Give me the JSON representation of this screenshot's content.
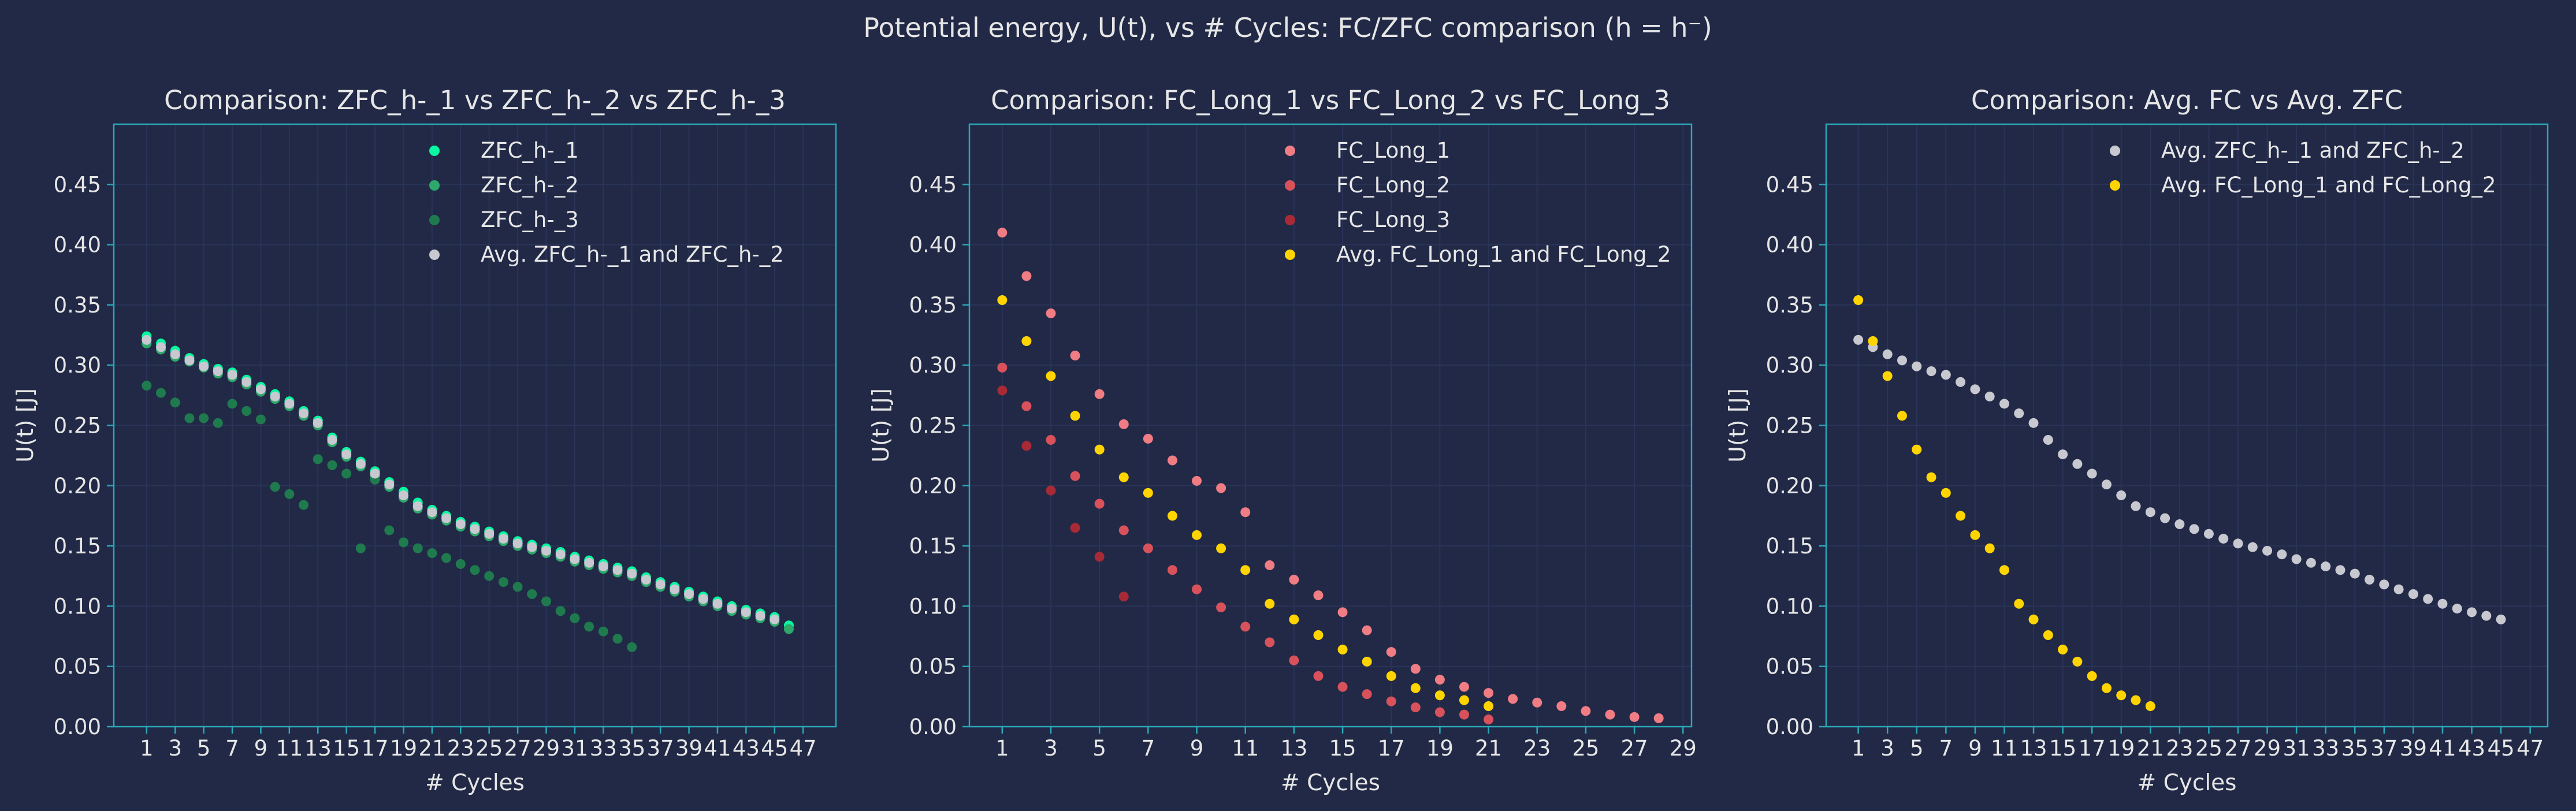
{
  "figure": {
    "suptitle": "Potential energy, U(t), vs # Cycles: FC/ZFC comparison (h = h⁻)",
    "background": "#212946",
    "grid_color": "#2A3459",
    "axes_color": "#2AA8B8",
    "text_color": "#E6E6E6"
  },
  "chart_data": [
    {
      "type": "scatter",
      "title": "Comparison: ZFC_h-_1 vs ZFC_h-_2 vs ZFC_h-_3",
      "xlabel": "# Cycles",
      "ylabel": "U(t) [J]",
      "xlim": [
        -1.3,
        49.3
      ],
      "ylim": [
        0,
        0.5
      ],
      "xticks": [
        1,
        3,
        5,
        7,
        9,
        11,
        13,
        15,
        17,
        19,
        21,
        23,
        25,
        27,
        29,
        31,
        33,
        35,
        37,
        39,
        41,
        43,
        45,
        47
      ],
      "yticks": [
        0.0,
        0.05,
        0.1,
        0.15,
        0.2,
        0.25,
        0.3,
        0.35,
        0.4,
        0.45
      ],
      "grid": true,
      "legend_position": "top-center",
      "series": [
        {
          "name": "ZFC_h-_1",
          "color": "#08F7A0",
          "x": [
            1,
            2,
            3,
            4,
            5,
            6,
            7,
            8,
            9,
            10,
            11,
            12,
            13,
            14,
            15,
            16,
            17,
            18,
            19,
            20,
            21,
            22,
            23,
            24,
            25,
            26,
            27,
            28,
            29,
            30,
            31,
            32,
            33,
            34,
            35,
            36,
            37,
            38,
            39,
            40,
            41,
            42,
            43,
            44,
            45,
            46
          ],
          "y": [
            0.324,
            0.318,
            0.312,
            0.306,
            0.301,
            0.297,
            0.294,
            0.288,
            0.282,
            0.276,
            0.27,
            0.262,
            0.254,
            0.24,
            0.228,
            0.22,
            0.212,
            0.203,
            0.195,
            0.186,
            0.18,
            0.175,
            0.17,
            0.166,
            0.162,
            0.158,
            0.154,
            0.151,
            0.148,
            0.145,
            0.141,
            0.138,
            0.135,
            0.132,
            0.129,
            0.124,
            0.12,
            0.116,
            0.112,
            0.108,
            0.104,
            0.1,
            0.097,
            0.094,
            0.091,
            0.084
          ]
        },
        {
          "name": "ZFC_h-_2",
          "color": "#2EA86C",
          "x": [
            1,
            2,
            3,
            4,
            5,
            6,
            7,
            8,
            9,
            10,
            11,
            12,
            13,
            14,
            15,
            16,
            17,
            18,
            19,
            20,
            21,
            22,
            23,
            24,
            25,
            26,
            27,
            28,
            29,
            30,
            31,
            32,
            33,
            34,
            35,
            36,
            37,
            38,
            39,
            40,
            41,
            42,
            43,
            44,
            45,
            46
          ],
          "y": [
            0.318,
            0.313,
            0.307,
            0.303,
            0.298,
            0.293,
            0.29,
            0.284,
            0.278,
            0.272,
            0.266,
            0.258,
            0.25,
            0.236,
            0.224,
            0.216,
            0.208,
            0.199,
            0.19,
            0.181,
            0.176,
            0.171,
            0.166,
            0.162,
            0.158,
            0.154,
            0.15,
            0.147,
            0.144,
            0.141,
            0.137,
            0.134,
            0.131,
            0.128,
            0.125,
            0.12,
            0.116,
            0.112,
            0.108,
            0.104,
            0.1,
            0.096,
            0.093,
            0.09,
            0.087,
            0.081
          ]
        },
        {
          "name": "ZFC_h-_3",
          "color": "#1F7A4E",
          "x": [
            1,
            2,
            3,
            4,
            5,
            6,
            7,
            8,
            9,
            10,
            11,
            12,
            13,
            14,
            15,
            16,
            17,
            18,
            19,
            20,
            21,
            22,
            23,
            24,
            25,
            26,
            27,
            28,
            29,
            30,
            31,
            32,
            33,
            34,
            35
          ],
          "y": [
            0.283,
            0.277,
            0.269,
            0.256,
            0.256,
            0.252,
            0.268,
            0.262,
            0.255,
            0.199,
            0.193,
            0.184,
            0.222,
            0.217,
            0.21,
            0.148,
            0.205,
            0.163,
            0.153,
            0.148,
            0.144,
            0.14,
            0.135,
            0.13,
            0.125,
            0.12,
            0.116,
            0.11,
            0.104,
            0.096,
            0.09,
            0.083,
            0.079,
            0.073,
            0.066
          ]
        },
        {
          "name": "Avg. ZFC_h-_1 and ZFC_h-_2",
          "color": "#C8C8D0",
          "x": [
            1,
            2,
            3,
            4,
            5,
            6,
            7,
            8,
            9,
            10,
            11,
            12,
            13,
            14,
            15,
            16,
            17,
            18,
            19,
            20,
            21,
            22,
            23,
            24,
            25,
            26,
            27,
            28,
            29,
            30,
            31,
            32,
            33,
            34,
            35,
            36,
            37,
            38,
            39,
            40,
            41,
            42,
            43,
            44,
            45
          ],
          "y": [
            0.321,
            0.315,
            0.309,
            0.304,
            0.299,
            0.295,
            0.292,
            0.286,
            0.28,
            0.274,
            0.268,
            0.26,
            0.252,
            0.238,
            0.226,
            0.218,
            0.21,
            0.201,
            0.192,
            0.183,
            0.178,
            0.173,
            0.168,
            0.164,
            0.16,
            0.156,
            0.152,
            0.149,
            0.146,
            0.143,
            0.139,
            0.136,
            0.133,
            0.13,
            0.127,
            0.122,
            0.118,
            0.114,
            0.11,
            0.106,
            0.102,
            0.098,
            0.095,
            0.092,
            0.089
          ]
        }
      ]
    },
    {
      "type": "scatter",
      "title": "Comparison: FC_Long_1 vs FC_Long_2 vs FC_Long_3",
      "xlabel": "# Cycles",
      "ylabel": "U(t) [J]",
      "xlim": [
        -0.35,
        29.35
      ],
      "ylim": [
        0,
        0.5
      ],
      "xticks": [
        1,
        3,
        5,
        7,
        9,
        11,
        13,
        15,
        17,
        19,
        21,
        23,
        25,
        27,
        29
      ],
      "yticks": [
        0.0,
        0.05,
        0.1,
        0.15,
        0.2,
        0.25,
        0.3,
        0.35,
        0.4,
        0.45
      ],
      "grid": true,
      "legend_position": "top-center",
      "series": [
        {
          "name": "FC_Long_1",
          "color": "#F07C84",
          "x": [
            1,
            2,
            3,
            4,
            5,
            6,
            7,
            8,
            9,
            10,
            11,
            12,
            13,
            14,
            15,
            16,
            17,
            18,
            19,
            20,
            21,
            22,
            23,
            24,
            25,
            26,
            27,
            28
          ],
          "y": [
            0.41,
            0.374,
            0.343,
            0.308,
            0.276,
            0.251,
            0.239,
            0.221,
            0.204,
            0.198,
            0.178,
            0.134,
            0.122,
            0.109,
            0.095,
            0.08,
            0.062,
            0.048,
            0.039,
            0.033,
            0.028,
            0.023,
            0.02,
            0.017,
            0.013,
            0.01,
            0.008,
            0.007
          ]
        },
        {
          "name": "FC_Long_2",
          "color": "#D9525B",
          "x": [
            1,
            2,
            3,
            4,
            5,
            6,
            7,
            8,
            9,
            10,
            11,
            12,
            13,
            14,
            15,
            16,
            17,
            18,
            19,
            20,
            21
          ],
          "y": [
            0.298,
            0.266,
            0.238,
            0.208,
            0.185,
            0.163,
            0.148,
            0.13,
            0.114,
            0.099,
            0.083,
            0.07,
            0.055,
            0.042,
            0.033,
            0.027,
            0.021,
            0.016,
            0.012,
            0.01,
            0.006
          ]
        },
        {
          "name": "FC_Long_3",
          "color": "#A82A36",
          "x": [
            1,
            2,
            3,
            4,
            5,
            6
          ],
          "y": [
            0.279,
            0.233,
            0.196,
            0.165,
            0.141,
            0.108
          ]
        },
        {
          "name": "Avg. FC_Long_1 and FC_Long_2",
          "color": "#FFD400",
          "x": [
            1,
            2,
            3,
            4,
            5,
            6,
            7,
            8,
            9,
            10,
            11,
            12,
            13,
            14,
            15,
            16,
            17,
            18,
            19,
            20,
            21
          ],
          "y": [
            0.354,
            0.32,
            0.291,
            0.258,
            0.23,
            0.207,
            0.194,
            0.175,
            0.159,
            0.148,
            0.13,
            0.102,
            0.089,
            0.076,
            0.064,
            0.054,
            0.042,
            0.032,
            0.026,
            0.022,
            0.017
          ]
        }
      ]
    },
    {
      "type": "scatter",
      "title": "Comparison: Avg. FC vs Avg. ZFC",
      "xlabel": "# Cycles",
      "ylabel": "U(t) [J]",
      "xlim": [
        -1.2,
        48.2
      ],
      "ylim": [
        0,
        0.5
      ],
      "xticks": [
        1,
        3,
        5,
        7,
        9,
        11,
        13,
        15,
        17,
        19,
        21,
        23,
        25,
        27,
        29,
        31,
        33,
        35,
        37,
        39,
        41,
        43,
        45,
        47
      ],
      "yticks": [
        0.0,
        0.05,
        0.1,
        0.15,
        0.2,
        0.25,
        0.3,
        0.35,
        0.4,
        0.45
      ],
      "grid": true,
      "legend_position": "top-right",
      "series": [
        {
          "name": "Avg. ZFC_h-_1 and ZFC_h-_2",
          "color": "#C8C8D0",
          "x": [
            1,
            2,
            3,
            4,
            5,
            6,
            7,
            8,
            9,
            10,
            11,
            12,
            13,
            14,
            15,
            16,
            17,
            18,
            19,
            20,
            21,
            22,
            23,
            24,
            25,
            26,
            27,
            28,
            29,
            30,
            31,
            32,
            33,
            34,
            35,
            36,
            37,
            38,
            39,
            40,
            41,
            42,
            43,
            44,
            45
          ],
          "y": [
            0.321,
            0.315,
            0.309,
            0.304,
            0.299,
            0.295,
            0.292,
            0.286,
            0.28,
            0.274,
            0.268,
            0.26,
            0.252,
            0.238,
            0.226,
            0.218,
            0.21,
            0.201,
            0.192,
            0.183,
            0.178,
            0.173,
            0.168,
            0.164,
            0.16,
            0.156,
            0.152,
            0.149,
            0.146,
            0.143,
            0.139,
            0.136,
            0.133,
            0.13,
            0.127,
            0.122,
            0.118,
            0.114,
            0.11,
            0.106,
            0.102,
            0.098,
            0.095,
            0.092,
            0.089
          ]
        },
        {
          "name": "Avg. FC_Long_1 and FC_Long_2",
          "color": "#FFD400",
          "x": [
            1,
            2,
            3,
            4,
            5,
            6,
            7,
            8,
            9,
            10,
            11,
            12,
            13,
            14,
            15,
            16,
            17,
            18,
            19,
            20,
            21
          ],
          "y": [
            0.354,
            0.32,
            0.291,
            0.258,
            0.23,
            0.207,
            0.194,
            0.175,
            0.159,
            0.148,
            0.13,
            0.102,
            0.089,
            0.076,
            0.064,
            0.054,
            0.042,
            0.032,
            0.026,
            0.022,
            0.017
          ]
        }
      ]
    }
  ]
}
